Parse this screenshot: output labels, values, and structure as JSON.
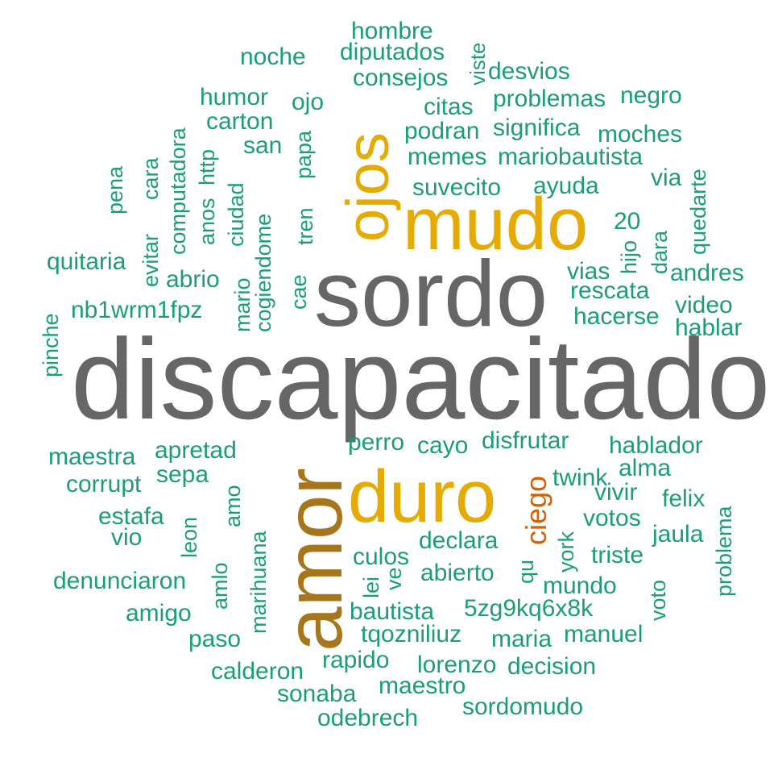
{
  "chart_data": {
    "type": "wordcloud",
    "title": "",
    "colors": {
      "tier1": "#666666",
      "tier2": "#a6761d",
      "tier3": "#e6ab02",
      "tier4": "#d95f02",
      "tier5": "#1b9e77"
    },
    "words": [
      {
        "text": "discapacitado",
        "freq": 100,
        "color": "#666666"
      },
      {
        "text": "sordo",
        "freq": 72,
        "color": "#666666"
      },
      {
        "text": "amor",
        "freq": 62,
        "color": "#a6761d"
      },
      {
        "text": "mudo",
        "freq": 52,
        "color": "#e6ab02"
      },
      {
        "text": "duro",
        "freq": 52,
        "color": "#e6ab02"
      },
      {
        "text": "ojos",
        "freq": 45,
        "color": "#e6ab02"
      },
      {
        "text": "ciego",
        "freq": 22,
        "color": "#d95f02"
      },
      {
        "text": "hombre",
        "freq": 10,
        "color": "#1b9e77"
      },
      {
        "text": "noche",
        "freq": 10,
        "color": "#1b9e77"
      },
      {
        "text": "diputados",
        "freq": 10,
        "color": "#1b9e77"
      },
      {
        "text": "viste",
        "freq": 10,
        "color": "#1b9e77"
      },
      {
        "text": "consejos",
        "freq": 10,
        "color": "#1b9e77"
      },
      {
        "text": "desvios",
        "freq": 10,
        "color": "#1b9e77"
      },
      {
        "text": "humor",
        "freq": 10,
        "color": "#1b9e77"
      },
      {
        "text": "ojo",
        "freq": 10,
        "color": "#1b9e77"
      },
      {
        "text": "citas",
        "freq": 10,
        "color": "#1b9e77"
      },
      {
        "text": "problemas",
        "freq": 10,
        "color": "#1b9e77"
      },
      {
        "text": "negro",
        "freq": 10,
        "color": "#1b9e77"
      },
      {
        "text": "carton",
        "freq": 10,
        "color": "#1b9e77"
      },
      {
        "text": "computadora",
        "freq": 10,
        "color": "#1b9e77"
      },
      {
        "text": "podran",
        "freq": 10,
        "color": "#1b9e77"
      },
      {
        "text": "significa",
        "freq": 10,
        "color": "#1b9e77"
      },
      {
        "text": "moches",
        "freq": 10,
        "color": "#1b9e77"
      },
      {
        "text": "san",
        "freq": 10,
        "color": "#1b9e77"
      },
      {
        "text": "papa",
        "freq": 10,
        "color": "#1b9e77"
      },
      {
        "text": "memes",
        "freq": 10,
        "color": "#1b9e77"
      },
      {
        "text": "mariobautista",
        "freq": 10,
        "color": "#1b9e77"
      },
      {
        "text": "pena",
        "freq": 10,
        "color": "#1b9e77"
      },
      {
        "text": "evitar",
        "freq": 10,
        "color": "#1b9e77"
      },
      {
        "text": "cara",
        "freq": 10,
        "color": "#1b9e77"
      },
      {
        "text": "anos",
        "freq": 10,
        "color": "#1b9e77"
      },
      {
        "text": "http",
        "freq": 10,
        "color": "#1b9e77"
      },
      {
        "text": "ciudad",
        "freq": 10,
        "color": "#1b9e77"
      },
      {
        "text": "cogiendome",
        "freq": 10,
        "color": "#1b9e77"
      },
      {
        "text": "tren",
        "freq": 10,
        "color": "#1b9e77"
      },
      {
        "text": "suvecito",
        "freq": 10,
        "color": "#1b9e77"
      },
      {
        "text": "ayuda",
        "freq": 10,
        "color": "#1b9e77"
      },
      {
        "text": "via",
        "freq": 10,
        "color": "#1b9e77"
      },
      {
        "text": "quedarte",
        "freq": 10,
        "color": "#1b9e77"
      },
      {
        "text": "20",
        "freq": 10,
        "color": "#1b9e77"
      },
      {
        "text": "hijo",
        "freq": 10,
        "color": "#1b9e77"
      },
      {
        "text": "dara",
        "freq": 10,
        "color": "#1b9e77"
      },
      {
        "text": "quitaria",
        "freq": 10,
        "color": "#1b9e77"
      },
      {
        "text": "abrio",
        "freq": 10,
        "color": "#1b9e77"
      },
      {
        "text": "mario",
        "freq": 10,
        "color": "#1b9e77"
      },
      {
        "text": "cae",
        "freq": 10,
        "color": "#1b9e77"
      },
      {
        "text": "vias",
        "freq": 10,
        "color": "#1b9e77"
      },
      {
        "text": "andres",
        "freq": 10,
        "color": "#1b9e77"
      },
      {
        "text": "rescata",
        "freq": 10,
        "color": "#1b9e77"
      },
      {
        "text": "pinche",
        "freq": 10,
        "color": "#1b9e77"
      },
      {
        "text": "nb1wrm1fpz",
        "freq": 10,
        "color": "#1b9e77"
      },
      {
        "text": "video",
        "freq": 10,
        "color": "#1b9e77"
      },
      {
        "text": "hacerse",
        "freq": 10,
        "color": "#1b9e77"
      },
      {
        "text": "hablar",
        "freq": 10,
        "color": "#1b9e77"
      },
      {
        "text": "perro",
        "freq": 10,
        "color": "#1b9e77"
      },
      {
        "text": "cayo",
        "freq": 10,
        "color": "#1b9e77"
      },
      {
        "text": "disfrutar",
        "freq": 10,
        "color": "#1b9e77"
      },
      {
        "text": "hablador",
        "freq": 10,
        "color": "#1b9e77"
      },
      {
        "text": "maestra",
        "freq": 10,
        "color": "#1b9e77"
      },
      {
        "text": "apretad",
        "freq": 10,
        "color": "#1b9e77"
      },
      {
        "text": "twink",
        "freq": 10,
        "color": "#1b9e77"
      },
      {
        "text": "alma",
        "freq": 10,
        "color": "#1b9e77"
      },
      {
        "text": "corrupt",
        "freq": 10,
        "color": "#1b9e77"
      },
      {
        "text": "sepa",
        "freq": 10,
        "color": "#1b9e77"
      },
      {
        "text": "amo",
        "freq": 10,
        "color": "#1b9e77"
      },
      {
        "text": "vivir",
        "freq": 10,
        "color": "#1b9e77"
      },
      {
        "text": "felix",
        "freq": 10,
        "color": "#1b9e77"
      },
      {
        "text": "estafa",
        "freq": 10,
        "color": "#1b9e77"
      },
      {
        "text": "leon",
        "freq": 10,
        "color": "#1b9e77"
      },
      {
        "text": "votos",
        "freq": 10,
        "color": "#1b9e77"
      },
      {
        "text": "problema",
        "freq": 10,
        "color": "#1b9e77"
      },
      {
        "text": "vio",
        "freq": 10,
        "color": "#1b9e77"
      },
      {
        "text": "marihuana",
        "freq": 10,
        "color": "#1b9e77"
      },
      {
        "text": "jaula",
        "freq": 10,
        "color": "#1b9e77"
      },
      {
        "text": "declara",
        "freq": 10,
        "color": "#1b9e77"
      },
      {
        "text": "york",
        "freq": 10,
        "color": "#1b9e77"
      },
      {
        "text": "culos",
        "freq": 10,
        "color": "#1b9e77"
      },
      {
        "text": "triste",
        "freq": 10,
        "color": "#1b9e77"
      },
      {
        "text": "qu",
        "freq": 10,
        "color": "#1b9e77"
      },
      {
        "text": "lei",
        "freq": 10,
        "color": "#1b9e77"
      },
      {
        "text": "ve",
        "freq": 10,
        "color": "#1b9e77"
      },
      {
        "text": "abierto",
        "freq": 10,
        "color": "#1b9e77"
      },
      {
        "text": "denunciaron",
        "freq": 10,
        "color": "#1b9e77"
      },
      {
        "text": "amlo",
        "freq": 10,
        "color": "#1b9e77"
      },
      {
        "text": "mundo",
        "freq": 10,
        "color": "#1b9e77"
      },
      {
        "text": "voto",
        "freq": 10,
        "color": "#1b9e77"
      },
      {
        "text": "amigo",
        "freq": 10,
        "color": "#1b9e77"
      },
      {
        "text": "bautista",
        "freq": 10,
        "color": "#1b9e77"
      },
      {
        "text": "5zg9kq6x8k",
        "freq": 10,
        "color": "#1b9e77"
      },
      {
        "text": "paso",
        "freq": 10,
        "color": "#1b9e77"
      },
      {
        "text": "tqozniliuz",
        "freq": 10,
        "color": "#1b9e77"
      },
      {
        "text": "maria",
        "freq": 10,
        "color": "#1b9e77"
      },
      {
        "text": "manuel",
        "freq": 10,
        "color": "#1b9e77"
      },
      {
        "text": "rapido",
        "freq": 10,
        "color": "#1b9e77"
      },
      {
        "text": "calderon",
        "freq": 10,
        "color": "#1b9e77"
      },
      {
        "text": "lorenzo",
        "freq": 10,
        "color": "#1b9e77"
      },
      {
        "text": "decision",
        "freq": 10,
        "color": "#1b9e77"
      },
      {
        "text": "maestro",
        "freq": 10,
        "color": "#1b9e77"
      },
      {
        "text": "sonaba",
        "freq": 10,
        "color": "#1b9e77"
      },
      {
        "text": "sordomudo",
        "freq": 10,
        "color": "#1b9e77"
      },
      {
        "text": "odebrech",
        "freq": 10,
        "color": "#1b9e77"
      }
    ]
  }
}
